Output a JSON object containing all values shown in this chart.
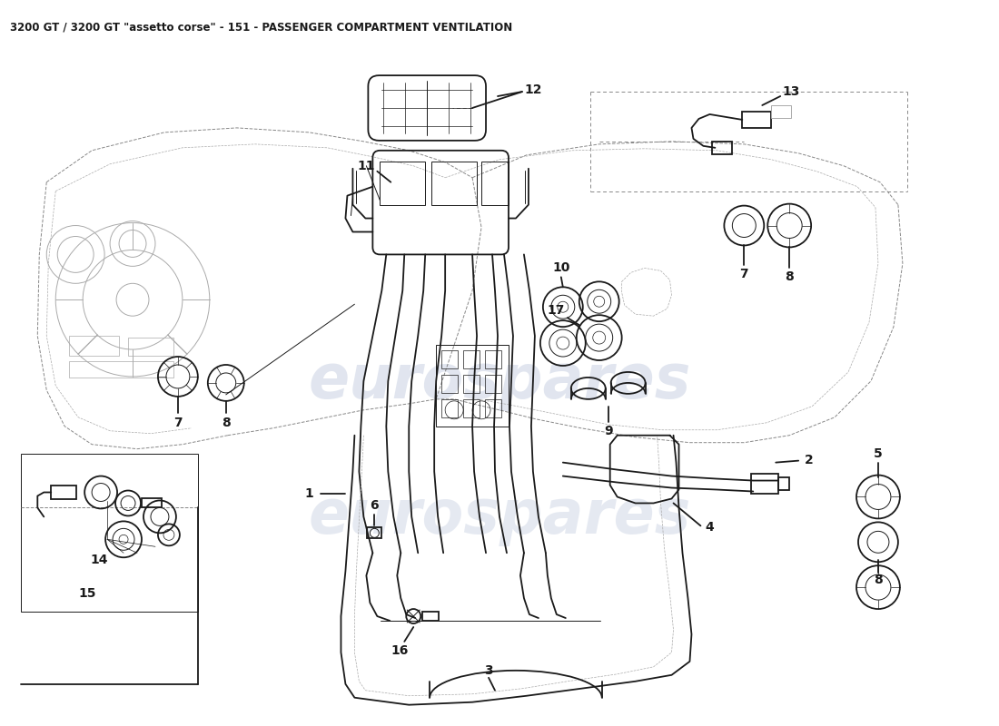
{
  "title": "3200 GT / 3200 GT \"assetto corse\" - 151 - PASSENGER COMPARTMENT VENTILATION",
  "title_fontsize": 8.5,
  "background_color": "#ffffff",
  "watermark_text": "eurospares",
  "watermark_color": "#cdd5e5",
  "watermark_fontsize": 48,
  "line_color": "#1a1a1a",
  "dash_color": "#888888",
  "light_color": "#aaaaaa",
  "label_fontsize": 10,
  "label_fontweight": "bold",
  "figw": 11.0,
  "figh": 8.0,
  "dpi": 100
}
